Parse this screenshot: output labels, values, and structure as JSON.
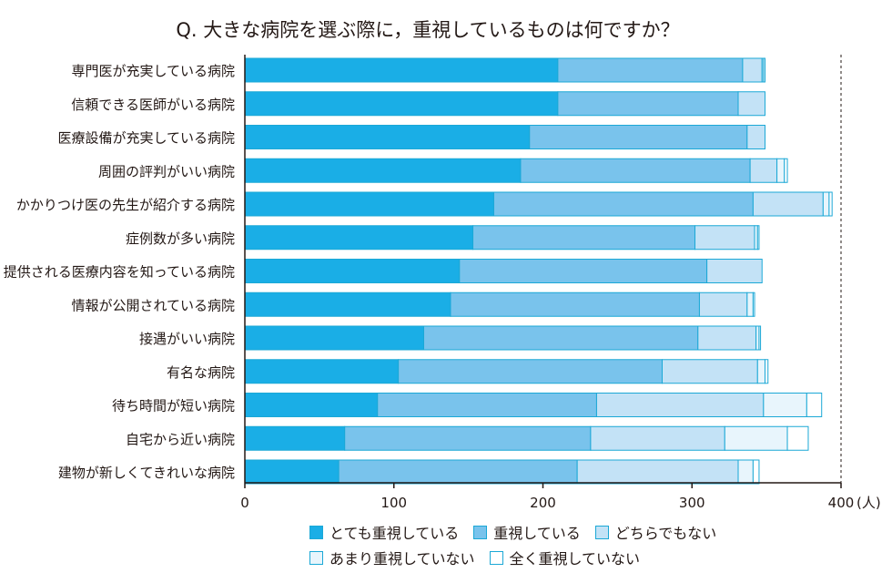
{
  "chart_data": {
    "type": "bar",
    "orientation": "horizontal",
    "stacked": true,
    "title": "Q.  大きな病院を選ぶ際に，重視しているものは何ですか？",
    "categories": [
      "専門医が充実している病院",
      "信頼できる医師がいる病院",
      "医療設備が充実している病院",
      "周囲の評判がいい病院",
      "かかりつけ医の先生が紹介する病院",
      "症例数が多い病院",
      "提供される医療内容を知っている病院",
      "情報が公開されている病院",
      "接遇がいい病院",
      "有名な病院",
      "待ち時間が短い病院",
      "自宅から近い病院",
      "建物が新しくてきれいな病院"
    ],
    "series": [
      {
        "name": "とても重視している",
        "color": "#1AAEE6",
        "values": [
          210,
          210,
          191,
          185,
          167,
          153,
          144,
          138,
          120,
          103,
          89,
          67,
          63
        ]
      },
      {
        "name": "重視している",
        "color": "#79C3EC",
        "values": [
          124,
          121,
          146,
          154,
          174,
          149,
          166,
          167,
          184,
          177,
          147,
          165,
          160
        ]
      },
      {
        "name": "どちらでもない",
        "color": "#C3E2F6",
        "values": [
          13,
          18,
          12,
          18,
          47,
          40,
          37,
          32,
          39,
          64,
          112,
          90,
          108
        ]
      },
      {
        "name": "あまり重視していない",
        "color": "#E8F5FC",
        "values": [
          1,
          0,
          0,
          5,
          4,
          2,
          0,
          4,
          2,
          5,
          29,
          42,
          10
        ]
      },
      {
        "name": "全く重視していない",
        "color": "#FFFFFF",
        "values": [
          1,
          0,
          0,
          2,
          2,
          1,
          0,
          1,
          1,
          2,
          10,
          14,
          4
        ]
      }
    ],
    "x_ticks": [
      0,
      100,
      200,
      300,
      400
    ],
    "x_unit": "(人)",
    "xlim": [
      0,
      400
    ],
    "reference_line": 400,
    "grid": false,
    "legend_position": "bottom"
  }
}
